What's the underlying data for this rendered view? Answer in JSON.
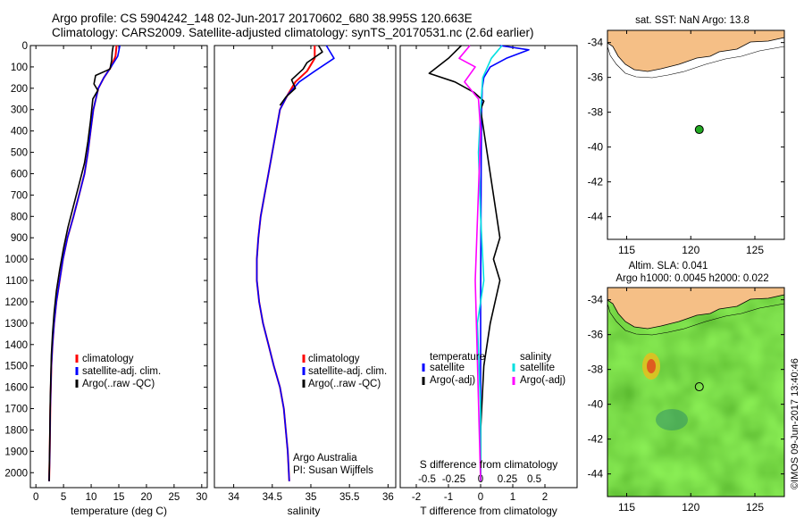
{
  "title": {
    "line1": "Argo profile: CS 5904242_148 02-Jun-2017 20170602_680 38.995S 120.663E",
    "line2": "Climatology: CARS2009. Satellite-adjusted climatology: synTS_20170531.nc (2.6d earlier)"
  },
  "colors": {
    "climatology": "#ff0000",
    "satellite": "#0000ff",
    "argo": "#000000",
    "sal_satellite": "#00e0e0",
    "sal_argo": "#ff00ff",
    "land": "#f5bf86"
  },
  "credits": {
    "watermark": "©IMOS 09-Jun-2017 13:40:46",
    "agency": "Argo Australia",
    "pi": "PI: Susan Wijffels"
  },
  "chart_data": [
    {
      "type": "line",
      "xlabel": "temperature (deg C)",
      "xlim": [
        -1,
        31
      ],
      "ylim": [
        2070,
        0
      ],
      "xticks": [
        0,
        5,
        10,
        15,
        20,
        25,
        30
      ],
      "yticks": [
        0,
        100,
        200,
        300,
        400,
        500,
        600,
        700,
        800,
        900,
        1000,
        1100,
        1200,
        1300,
        1400,
        1500,
        1600,
        1700,
        1800,
        1900,
        2000
      ],
      "legend": [
        "climatology",
        "satellite-adj. clim.",
        "Argo(..raw -QC)"
      ],
      "series": [
        {
          "name": "climatology",
          "color": "#ff0000",
          "x": [
            14.6,
            14.4,
            13.6,
            12.3,
            11.3,
            10.4,
            9.9,
            9.4,
            8.8,
            7.8,
            6.8,
            5.7,
            4.9,
            4.3,
            3.7,
            3.3,
            3.0,
            2.8,
            2.7,
            2.6,
            2.5,
            2.4
          ],
          "y": [
            0,
            50,
            100,
            150,
            200,
            300,
            400,
            500,
            600,
            700,
            800,
            900,
            1000,
            1100,
            1200,
            1300,
            1400,
            1500,
            1600,
            1700,
            1900,
            2040
          ]
        },
        {
          "name": "satellite-adj. clim.",
          "color": "#0000ff",
          "x": [
            15.2,
            14.8,
            13.6,
            12.3,
            11.3,
            10.4,
            9.9,
            9.4,
            8.8,
            7.8,
            6.8,
            5.7,
            4.9,
            4.3,
            3.7,
            3.3,
            3.0,
            2.8,
            2.7,
            2.6,
            2.5,
            2.4
          ],
          "y": [
            0,
            50,
            100,
            150,
            200,
            300,
            400,
            500,
            600,
            700,
            800,
            900,
            1000,
            1100,
            1200,
            1300,
            1400,
            1500,
            1600,
            1700,
            1900,
            2040
          ]
        },
        {
          "name": "Argo(..raw -QC)",
          "color": "#000000",
          "x": [
            14.0,
            13.8,
            13.7,
            13.4,
            10.8,
            10.5,
            11.2,
            10.3,
            9.9,
            9.4,
            8.8,
            7.8,
            6.8,
            5.8,
            5.0,
            4.3,
            3.7,
            3.3,
            3.0,
            2.8,
            2.7,
            2.6,
            2.5,
            2.4
          ],
          "y": [
            0,
            30,
            70,
            110,
            140,
            180,
            210,
            250,
            350,
            450,
            550,
            650,
            750,
            850,
            950,
            1050,
            1150,
            1250,
            1350,
            1450,
            1550,
            1650,
            1850,
            2040
          ]
        }
      ]
    },
    {
      "type": "line",
      "xlabel": "salinity",
      "xlim": [
        33.75,
        36.1
      ],
      "ylim": [
        2070,
        0
      ],
      "xticks": [
        34,
        34.5,
        35,
        35.5,
        36
      ],
      "xticklabels": [
        "34",
        "34.5",
        "35",
        "35.5",
        "36"
      ],
      "legend": [
        "climatology",
        "satellite-adj. clim.",
        "Argo(..raw -QC)"
      ],
      "series": [
        {
          "name": "climatology",
          "color": "#ff0000",
          "x": [
            35.05,
            35.05,
            34.95,
            34.8,
            34.7,
            34.6,
            34.55,
            34.5,
            34.45,
            34.4,
            34.35,
            34.32,
            34.3,
            34.3,
            34.33,
            34.38,
            34.45,
            34.52,
            34.6,
            34.65,
            34.7,
            34.72
          ],
          "y": [
            0,
            60,
            120,
            170,
            230,
            300,
            400,
            500,
            600,
            700,
            800,
            900,
            1000,
            1100,
            1200,
            1300,
            1400,
            1500,
            1600,
            1700,
            1900,
            2040
          ]
        },
        {
          "name": "satellite-adj. clim.",
          "color": "#0000ff",
          "x": [
            35.2,
            35.3,
            35.05,
            34.85,
            34.7,
            34.6,
            34.55,
            34.5,
            34.45,
            34.4,
            34.35,
            34.32,
            34.3,
            34.3,
            34.33,
            34.38,
            34.45,
            34.52,
            34.6,
            34.65,
            34.7,
            34.72
          ],
          "y": [
            0,
            60,
            120,
            170,
            230,
            300,
            400,
            500,
            600,
            700,
            800,
            900,
            1000,
            1100,
            1200,
            1300,
            1400,
            1500,
            1600,
            1700,
            1900,
            2040
          ]
        },
        {
          "name": "Argo(..raw -QC)",
          "color": "#000000",
          "x": [
            35.1,
            35.15,
            34.95,
            34.9,
            34.75,
            34.8,
            34.68,
            34.6
          ],
          "y": [
            0,
            30,
            80,
            110,
            160,
            200,
            240,
            280
          ]
        }
      ]
    },
    {
      "type": "line",
      "xlabel": "T difference from climatology",
      "x2label": "S difference from climatology",
      "xlim": [
        -2.5,
        3.0
      ],
      "x2lim": [
        -0.75,
        0.9
      ],
      "ylim": [
        2070,
        0
      ],
      "xticks": [
        -2,
        -1,
        0,
        1,
        2
      ],
      "x2ticks": [
        -0.5,
        -0.25,
        0,
        0.25,
        0.5
      ],
      "x2ticklabels": [
        "-0.5",
        "-0.25",
        "0",
        "0.25",
        "0.5"
      ],
      "legend_headers": [
        "temperature",
        "salinity"
      ],
      "legend": [
        "satellite",
        "Argo(-adj)",
        "satellite",
        "Argo(-adj)"
      ],
      "series": [
        {
          "name": "satellite",
          "color": "#0000ff",
          "x": [
            0.6,
            1.5,
            0.8,
            0.3,
            0.1,
            0.05,
            0.03,
            0.02,
            0.01,
            0.0,
            0.0,
            0.0
          ],
          "y": [
            0,
            20,
            60,
            100,
            150,
            200,
            300,
            500,
            800,
            1200,
            1600,
            2040
          ]
        },
        {
          "name": "Argo(-adj)",
          "color": "#000000",
          "x": [
            -0.6,
            -1.0,
            -1.6,
            -0.8,
            -0.2,
            0.1,
            0.0,
            0.3,
            0.5,
            0.6,
            0.4,
            0.6,
            0.3,
            0.1,
            0.0,
            0.0
          ],
          "y": [
            0,
            60,
            130,
            170,
            220,
            260,
            300,
            600,
            800,
            900,
            1000,
            1100,
            1300,
            1500,
            1800,
            2040
          ]
        },
        {
          "name": "satellite",
          "color": "#00e0e0",
          "x": [
            0.2,
            0.1,
            0.02,
            0.0,
            -0.02,
            0.0,
            0.03,
            -0.03,
            0.0,
            0.0
          ],
          "y": [
            0,
            60,
            150,
            300,
            500,
            800,
            1100,
            1300,
            1700,
            2040
          ]
        },
        {
          "name": "Argo(-adj)",
          "color": "#ff00ff",
          "x": [
            -0.1,
            -0.2,
            -0.05,
            -0.15,
            -0.02,
            0.0,
            -0.05,
            0.0
          ],
          "y": [
            0,
            60,
            100,
            170,
            250,
            400,
            1100,
            2040
          ]
        }
      ]
    },
    {
      "type": "scatter",
      "title": "sat. SST: NaN Argo: 13.8",
      "xlim": [
        113.5,
        127.3
      ],
      "ylim": [
        -45.3,
        -33.3
      ],
      "xticks": [
        115,
        120,
        125
      ],
      "yticks": [
        -34,
        -36,
        -38,
        -40,
        -42,
        -44
      ],
      "points": [
        {
          "x": 120.663,
          "y": -38.995
        }
      ]
    },
    {
      "type": "heatmap",
      "title": "Altim. SLA: 0.041",
      "subtitle": "Argo h1000: 0.0045 h2000: 0.022",
      "xlim": [
        113.5,
        127.3
      ],
      "ylim": [
        -45.3,
        -33.3
      ],
      "xticks": [
        115,
        120,
        125
      ],
      "yticks": [
        -34,
        -36,
        -38,
        -40,
        -42,
        -44
      ],
      "points": [
        {
          "x": 120.663,
          "y": -38.995
        }
      ]
    }
  ]
}
